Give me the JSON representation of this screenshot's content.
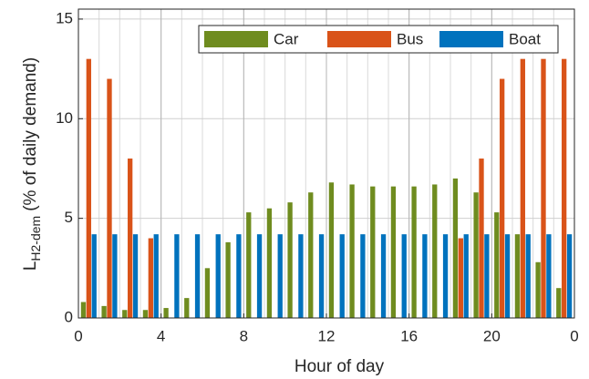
{
  "chart_data": {
    "type": "bar",
    "xlabel": "Hour of day",
    "ylabel_parts": [
      "L",
      "H2-dem",
      "(% of daily demand)"
    ],
    "x": [
      0,
      1,
      2,
      3,
      4,
      5,
      6,
      7,
      8,
      9,
      10,
      11,
      12,
      13,
      14,
      15,
      16,
      17,
      18,
      19,
      20,
      21,
      22,
      23
    ],
    "series": [
      {
        "name": "Car",
        "color": "#6f8c1f",
        "values": [
          0.8,
          0.6,
          0.4,
          0.4,
          0.5,
          1.0,
          2.5,
          3.8,
          5.3,
          5.5,
          5.8,
          6.3,
          6.8,
          6.7,
          6.6,
          6.6,
          6.6,
          6.7,
          7.0,
          6.3,
          5.3,
          4.2,
          2.8,
          1.5
        ]
      },
      {
        "name": "Bus",
        "color": "#d95319",
        "values": [
          13,
          12,
          8,
          4,
          0,
          0,
          0,
          0,
          0,
          0,
          0,
          0,
          0,
          0,
          0,
          0,
          0,
          0,
          4,
          8,
          12,
          13,
          13,
          13
        ]
      },
      {
        "name": "Boat",
        "color": "#0072bd",
        "values": [
          4.2,
          4.2,
          4.2,
          4.2,
          4.2,
          4.2,
          4.2,
          4.2,
          4.2,
          4.2,
          4.2,
          4.2,
          4.2,
          4.2,
          4.2,
          4.2,
          4.2,
          4.2,
          4.2,
          4.2,
          4.2,
          4.2,
          4.2,
          4.2
        ]
      }
    ],
    "xlim": [
      0,
      24
    ],
    "xticks": [
      0,
      4,
      8,
      12,
      16,
      20,
      {
        "value": 24,
        "label": "0"
      }
    ],
    "ylim": [
      0,
      15.5
    ],
    "yticks": [
      0,
      5,
      10,
      15
    ],
    "grid": true,
    "minor_grid_step": 1,
    "legend": "top-right"
  }
}
